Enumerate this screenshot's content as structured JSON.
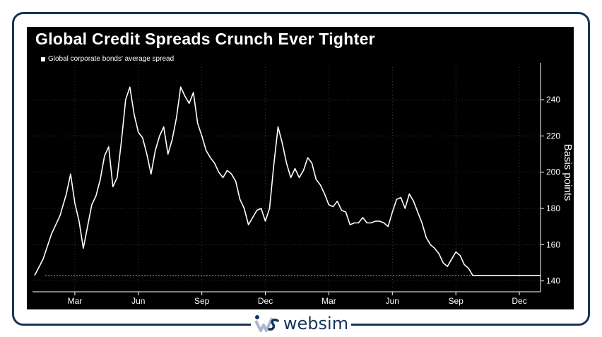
{
  "brand": {
    "name": "websim"
  },
  "chart_data": {
    "type": "line",
    "title": "Global Credit Spreads Crunch Ever Tighter",
    "legend": [
      "Global corporate bonds' average spread"
    ],
    "legend_position": "top-left",
    "ylabel": "Basis points",
    "xlabel": "",
    "ylim": [
      134,
      258
    ],
    "xlim": [
      0,
      24
    ],
    "grid": true,
    "yticks": [
      140,
      160,
      180,
      200,
      220,
      240
    ],
    "x_ticks": [
      {
        "x": 2,
        "label": "Mar"
      },
      {
        "x": 5,
        "label": "Jun"
      },
      {
        "x": 8,
        "label": "Sep"
      },
      {
        "x": 11,
        "label": "Dec"
      },
      {
        "x": 14,
        "label": "Mar"
      },
      {
        "x": 17,
        "label": "Jun"
      },
      {
        "x": 20,
        "label": "Sep"
      },
      {
        "x": 23,
        "label": "Dec"
      }
    ],
    "reference_line": {
      "value": 143
    },
    "colors": {
      "series": "#ffffff",
      "reference": "#8ad41c",
      "grid": "#5a5a5a",
      "axis": "#ffffff"
    },
    "series": [
      {
        "name": "Global corporate bonds' average spread",
        "x": [
          0.1,
          0.5,
          0.9,
          1.3,
          1.6,
          1.8,
          2.0,
          2.2,
          2.4,
          2.6,
          2.8,
          3.0,
          3.2,
          3.4,
          3.6,
          3.8,
          4.0,
          4.2,
          4.4,
          4.6,
          4.8,
          5.0,
          5.2,
          5.4,
          5.6,
          5.8,
          6.0,
          6.2,
          6.4,
          6.6,
          6.8,
          7.0,
          7.2,
          7.4,
          7.6,
          7.8,
          8.0,
          8.2,
          8.4,
          8.6,
          8.8,
          9.0,
          9.2,
          9.4,
          9.6,
          9.8,
          10.0,
          10.2,
          10.4,
          10.6,
          10.8,
          11.0,
          11.2,
          11.4,
          11.6,
          11.8,
          12.0,
          12.2,
          12.4,
          12.6,
          12.8,
          13.0,
          13.2,
          13.4,
          13.6,
          13.8,
          14.0,
          14.2,
          14.4,
          14.6,
          14.8,
          15.0,
          15.2,
          15.4,
          15.6,
          15.8,
          16.0,
          16.2,
          16.4,
          16.6,
          16.8,
          17.0,
          17.2,
          17.4,
          17.6,
          17.8,
          18.0,
          18.2,
          18.4,
          18.6,
          18.8,
          19.0,
          19.2,
          19.4,
          19.6,
          19.8,
          20.0,
          20.2,
          20.4,
          20.6,
          20.8,
          21.0,
          21.2,
          21.4,
          21.6,
          21.8,
          22.0,
          22.2,
          22.4,
          22.6,
          22.8,
          23.0,
          23.2,
          23.4,
          23.6,
          23.8,
          24.0
        ],
        "values": [
          143,
          152,
          166,
          176,
          188,
          199,
          183,
          173,
          158,
          170,
          182,
          187,
          196,
          209,
          214,
          192,
          197,
          217,
          240,
          247,
          232,
          222,
          219,
          210,
          199,
          212,
          220,
          225,
          210,
          218,
          230,
          247,
          242,
          238,
          244,
          227,
          220,
          212,
          208,
          205,
          200,
          197,
          201,
          199,
          195,
          185,
          180,
          171,
          175,
          179,
          180,
          173,
          180,
          204,
          225,
          216,
          205,
          197,
          202,
          197,
          201,
          208,
          205,
          196,
          193,
          188,
          182,
          181,
          184,
          179,
          178,
          171,
          172,
          172,
          175,
          172,
          172,
          173,
          173,
          172,
          170,
          178,
          185,
          186,
          180,
          188,
          184,
          178,
          172,
          164,
          160,
          158,
          155,
          150,
          148,
          152,
          156,
          154,
          149,
          147,
          143,
          143,
          143,
          143,
          143,
          143,
          143,
          143,
          143,
          143,
          143,
          143,
          143,
          143,
          143,
          143,
          143
        ]
      }
    ]
  }
}
